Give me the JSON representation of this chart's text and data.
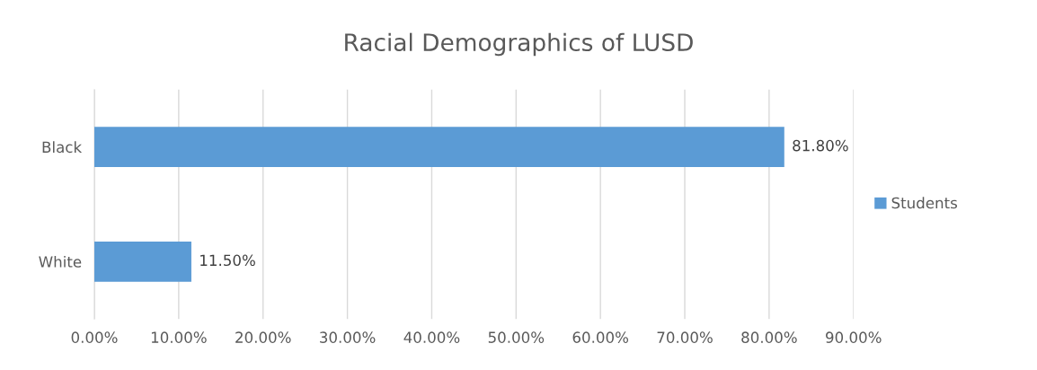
{
  "chart_data": {
    "type": "bar",
    "orientation": "horizontal",
    "title": "Racial Demographics of LUSD",
    "categories": [
      "Black",
      "White"
    ],
    "series": [
      {
        "name": "Students",
        "color": "#5b9bd5",
        "values": [
          81.8,
          11.5
        ],
        "value_labels": [
          "81.80%",
          "11.50%"
        ]
      }
    ],
    "xlim": [
      0,
      90
    ],
    "xticks": [
      {
        "value": 0,
        "label": "0.00%"
      },
      {
        "value": 10,
        "label": "10.00%"
      },
      {
        "value": 20,
        "label": "20.00%"
      },
      {
        "value": 30,
        "label": "30.00%"
      },
      {
        "value": 40,
        "label": "40.00%"
      },
      {
        "value": 50,
        "label": "50.00%"
      },
      {
        "value": 60,
        "label": "60.00%"
      },
      {
        "value": 70,
        "label": "70.00%"
      },
      {
        "value": 80,
        "label": "80.00%"
      },
      {
        "value": 90,
        "label": "90.00%"
      }
    ],
    "grid": "x",
    "legend": "right"
  }
}
